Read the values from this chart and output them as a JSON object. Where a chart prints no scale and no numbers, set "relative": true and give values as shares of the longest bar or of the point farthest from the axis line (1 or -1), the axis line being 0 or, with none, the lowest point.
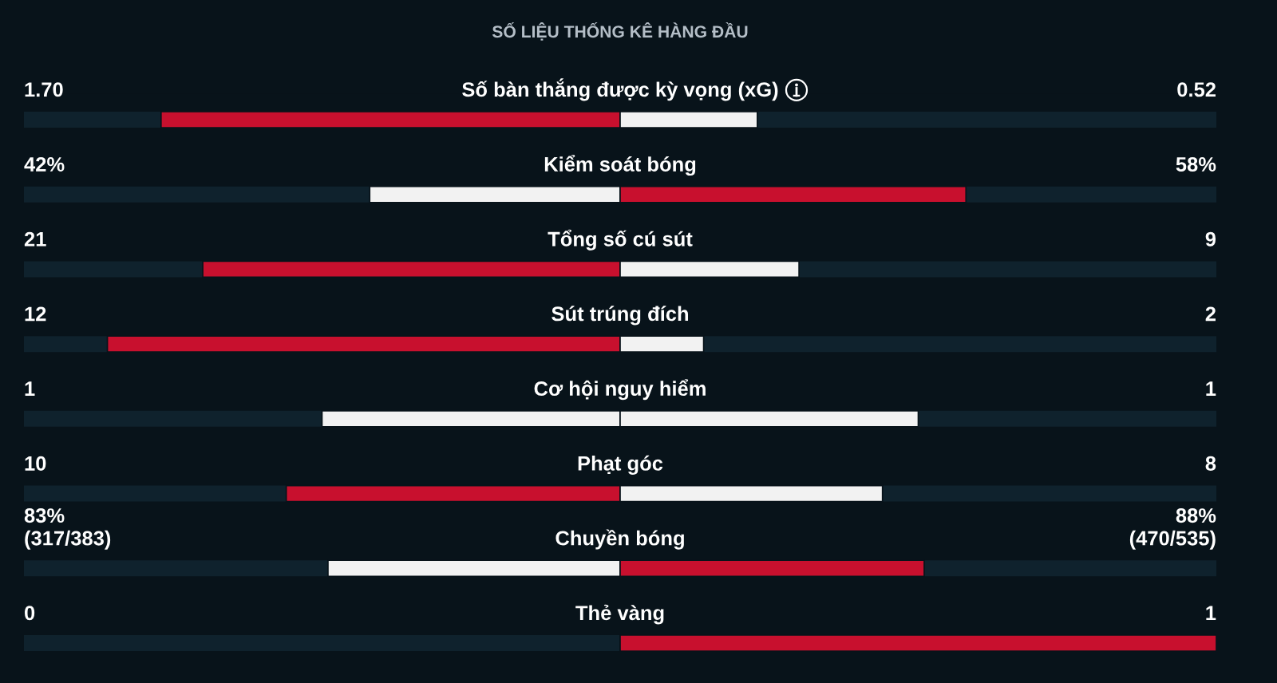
{
  "chart_data": {
    "type": "bar",
    "orientation": "horizontal",
    "relative": true,
    "stacked": true,
    "grid": "y",
    "title": "SỐ LIỆU THỐNG KÊ HÀNG ĐẦU",
    "categories": [
      "Số bàn thắng được kỳ vọng (xG)",
      "Kiểm soát bóng",
      "Tổng số cú sút",
      "Sút trúng đích",
      "Cơ hội nguy hiểm",
      "Phạt góc",
      "Chuyền bóng",
      "Thẻ vàng"
    ],
    "series": [
      {
        "values": [
          -0.77,
          -0.42,
          -0.7,
          -0.86,
          -0.5,
          -0.56,
          -0.49,
          0
        ],
        "colors": [
          "#c8102e",
          "#f2f2f2",
          "#c8102e",
          "#c8102e",
          "#f2f2f2",
          "#c8102e",
          "#f2f2f2",
          "#f2f2f2"
        ]
      },
      {
        "values": [
          0.23,
          0.58,
          0.3,
          0.14,
          0.5,
          0.44,
          0.51,
          1
        ],
        "colors": [
          "#f2f2f2",
          "#c8102e",
          "#f2f2f2",
          "#f2f2f2",
          "#f2f2f2",
          "#f2f2f2",
          "#c8102e",
          "#c8102e"
        ]
      }
    ],
    "annotations": [
      "1.70",
      "0.52",
      "42%",
      "58%",
      "21",
      "9",
      "12",
      "2",
      "1",
      "1",
      "10",
      "8",
      "83%\n(317/383)",
      "88%\n(470/535)",
      "0",
      "1"
    ]
  }
}
